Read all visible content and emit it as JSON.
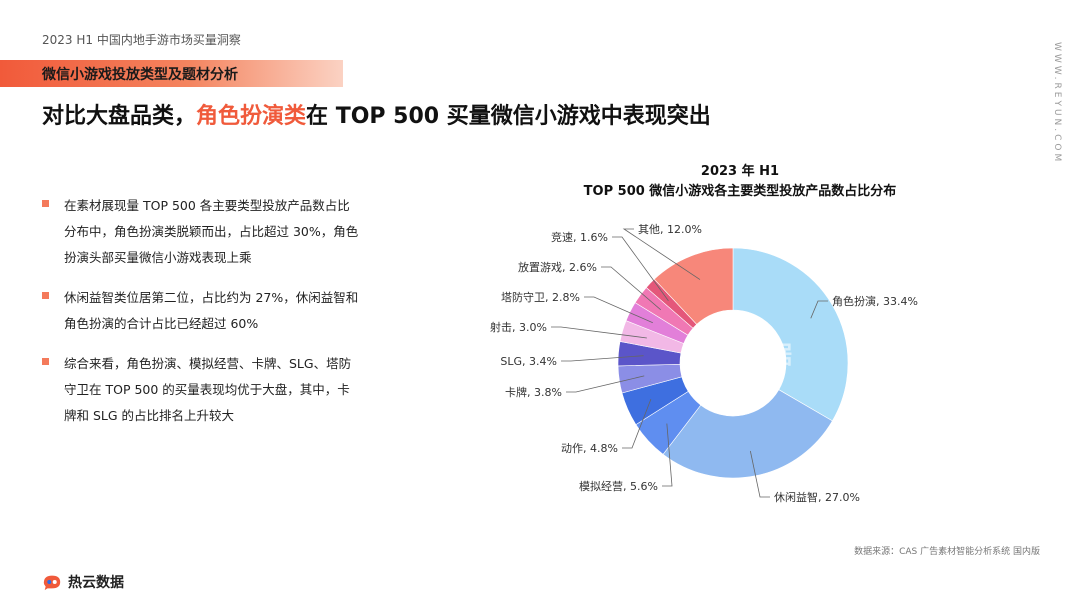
{
  "header": {
    "report_label": "2023 H1 中国内地手游市场买量洞察",
    "section_title": "微信小游戏投放类型及题材分析",
    "headline_prefix": "对比大盘品类，",
    "headline_highlight": "角色扮演类",
    "headline_suffix": "在 TOP 500 买量微信小游戏中表现突出",
    "side_brand": "WWW.REYUN.COM"
  },
  "bullets": [
    "在素材展现量 TOP 500 各主要类型投放产品数占比分布中，角色扮演类脱颖而出，占比超过 30%，角色扮演头部买量微信小游戏表现上乘",
    "休闲益智类位居第二位，占比约为 27%，休闲益智和角色扮演的合计占比已经超过 60%",
    "综合来看，角色扮演、模拟经营、卡牌、SLG、塔防守卫在 TOP 500 的买量表现均优于大盘，其中，卡牌和 SLG 的占比排名上升较大"
  ],
  "footer": {
    "source": "数据来源：CAS 广告素材智能分析系统 国内版",
    "logo_text": "热云数据",
    "watermark": "热云数据"
  },
  "chart_data": {
    "type": "pie",
    "title": "2023 年 H1",
    "subtitle": "TOP 500 微信小游戏各主要类型投放产品数占比分布",
    "donut": true,
    "unit": "%",
    "slices": [
      {
        "label": "角色扮演",
        "value": 33.4,
        "color": "#a9dcf8"
      },
      {
        "label": "休闲益智",
        "value": 27.0,
        "color": "#8fb9f0"
      },
      {
        "label": "模拟经营",
        "value": 5.6,
        "color": "#5f8ef0"
      },
      {
        "label": "动作",
        "value": 4.8,
        "color": "#3e6fe0"
      },
      {
        "label": "卡牌",
        "value": 3.8,
        "color": "#8b8ee6"
      },
      {
        "label": "SLG",
        "value": 3.4,
        "color": "#5b55c9"
      },
      {
        "label": "射击",
        "value": 3.0,
        "color": "#f2b8e6"
      },
      {
        "label": "塔防守卫",
        "value": 2.8,
        "color": "#e27fd9"
      },
      {
        "label": "放置游戏",
        "value": 2.6,
        "color": "#f078b4"
      },
      {
        "label": "竞速",
        "value": 1.6,
        "color": "#e4577a"
      },
      {
        "label": "其他",
        "value": 12.0,
        "color": "#f7877a"
      }
    ]
  }
}
